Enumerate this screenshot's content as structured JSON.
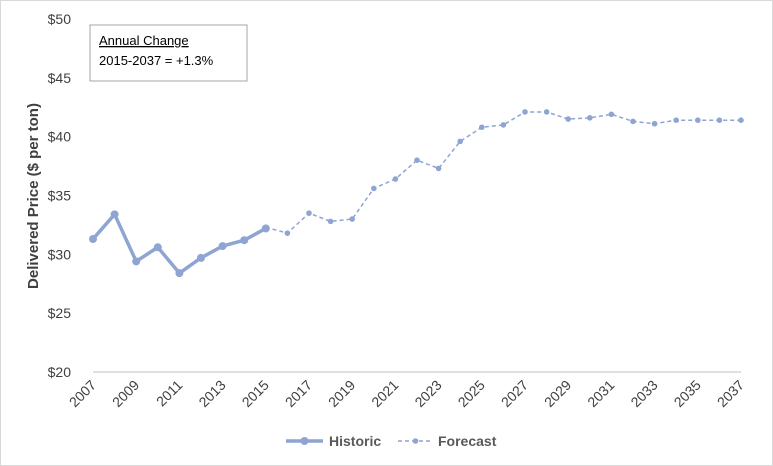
{
  "chart_data": {
    "type": "line",
    "title": "",
    "xlabel": "",
    "ylabel": "Delivered Price ($ per ton)",
    "ylim": [
      20,
      50
    ],
    "xlim": [
      2007,
      2037
    ],
    "y_ticks": [
      "$20",
      "$25",
      "$30",
      "$35",
      "$40",
      "$45",
      "$50"
    ],
    "x_ticks": [
      "2007",
      "2009",
      "2011",
      "2013",
      "2015",
      "2017",
      "2019",
      "2021",
      "2023",
      "2025",
      "2027",
      "2029",
      "2031",
      "2033",
      "2035",
      "2037"
    ],
    "grid": false,
    "legend_position": "bottom",
    "series": [
      {
        "name": "Historic",
        "style": "solid",
        "color": "#8EA4D2",
        "x": [
          2007,
          2008,
          2009,
          2010,
          2011,
          2012,
          2013,
          2014,
          2015
        ],
        "values": [
          31.3,
          33.4,
          29.4,
          30.6,
          28.4,
          29.7,
          30.7,
          31.2,
          32.2
        ]
      },
      {
        "name": "Forecast",
        "style": "dashed",
        "color": "#8EA4D2",
        "x": [
          2015,
          2016,
          2017,
          2018,
          2019,
          2020,
          2021,
          2022,
          2023,
          2024,
          2025,
          2026,
          2027,
          2028,
          2029,
          2030,
          2031,
          2032,
          2033,
          2034,
          2035,
          2036,
          2037
        ],
        "values": [
          32.3,
          31.8,
          33.5,
          32.8,
          33.0,
          35.6,
          36.4,
          38.0,
          37.3,
          39.6,
          40.8,
          41.0,
          42.1,
          42.1,
          41.5,
          41.6,
          41.9,
          41.3,
          41.1,
          41.4,
          41.4,
          41.4,
          41.4
        ]
      }
    ],
    "annotation": {
      "title": "Annual Change",
      "text": "2015-2037 = +1.3%"
    }
  }
}
